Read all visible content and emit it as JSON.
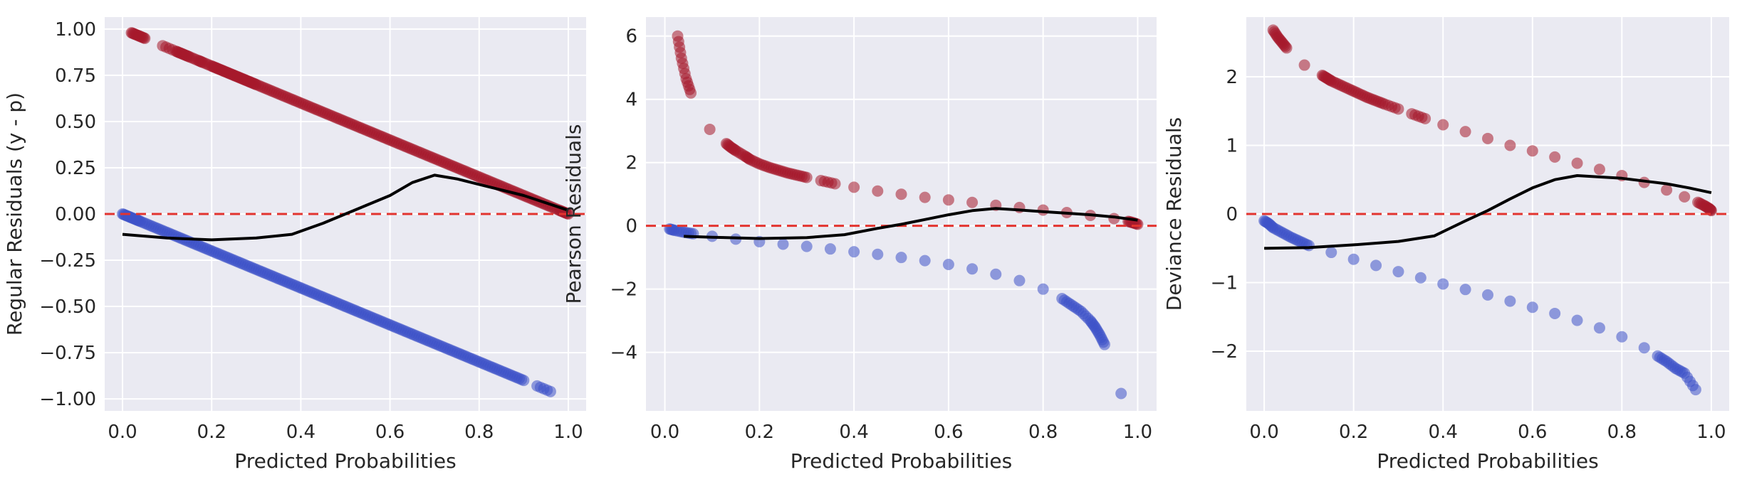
{
  "colors": {
    "panel_background": "#eaeaf2",
    "grid": "#ffffff",
    "positive_points": "#a5192b",
    "negative_points": "#3e52c8",
    "trend_line": "#000000",
    "reference_line": "#e3342f"
  },
  "chart_data": [
    {
      "type": "scatter",
      "title": "",
      "xlabel": "Predicted Probabilities",
      "ylabel": "Regular Residuals (y - p)",
      "xlim": [
        -0.04,
        1.04
      ],
      "ylim": [
        -1.065,
        1.065
      ],
      "xticks": [
        0.0,
        0.2,
        0.4,
        0.6,
        0.8,
        1.0
      ],
      "xtick_labels": [
        "0.0",
        "0.2",
        "0.4",
        "0.6",
        "0.8",
        "1.0"
      ],
      "yticks": [
        -1.0,
        -0.75,
        -0.5,
        -0.25,
        0.0,
        0.25,
        0.5,
        0.75,
        1.0
      ],
      "ytick_labels": [
        "−1.00",
        "−0.75",
        "−0.50",
        "−0.25",
        "0.00",
        "0.25",
        "0.50",
        "0.75",
        "1.00"
      ],
      "grid": true,
      "reference_line_y": 0,
      "series": [
        {
          "kind": "scatter",
          "color": "#a5192b",
          "x": [
            0.02,
            0.03,
            0.04,
            0.05,
            0.09,
            0.12,
            0.13,
            0.14,
            0.15,
            0.17,
            0.18,
            0.2,
            0.21,
            0.22,
            0.23,
            0.24,
            0.25,
            0.26,
            0.27,
            0.28,
            0.29,
            0.3,
            0.32,
            0.34,
            0.36,
            0.38,
            0.4,
            0.42,
            0.44,
            0.46,
            0.48,
            0.5,
            0.52,
            0.54,
            0.56,
            0.58,
            0.6,
            0.62,
            0.64,
            0.66,
            0.68,
            0.7,
            0.72,
            0.74,
            0.76,
            0.78,
            0.8,
            0.82,
            0.84,
            0.86,
            0.88,
            0.9,
            0.92,
            0.94,
            0.96,
            0.98,
            0.99,
            1.0
          ],
          "y": [
            0.98,
            0.97,
            0.96,
            0.95,
            0.91,
            0.88,
            0.87,
            0.86,
            0.85,
            0.83,
            0.82,
            0.8,
            0.79,
            0.78,
            0.77,
            0.76,
            0.75,
            0.74,
            0.73,
            0.72,
            0.71,
            0.7,
            0.68,
            0.66,
            0.64,
            0.62,
            0.6,
            0.58,
            0.56,
            0.54,
            0.52,
            0.5,
            0.48,
            0.46,
            0.44,
            0.42,
            0.4,
            0.38,
            0.36,
            0.34,
            0.32,
            0.3,
            0.28,
            0.26,
            0.24,
            0.22,
            0.2,
            0.18,
            0.16,
            0.14,
            0.12,
            0.1,
            0.08,
            0.06,
            0.04,
            0.02,
            0.01,
            0.0
          ]
        },
        {
          "kind": "scatter",
          "color": "#3e52c8",
          "x": [
            0.0,
            0.01,
            0.02,
            0.03,
            0.04,
            0.06,
            0.08,
            0.1,
            0.12,
            0.14,
            0.16,
            0.18,
            0.2,
            0.22,
            0.24,
            0.26,
            0.28,
            0.3,
            0.32,
            0.34,
            0.36,
            0.38,
            0.4,
            0.42,
            0.44,
            0.46,
            0.48,
            0.5,
            0.52,
            0.54,
            0.56,
            0.58,
            0.6,
            0.62,
            0.64,
            0.66,
            0.68,
            0.7,
            0.72,
            0.74,
            0.76,
            0.78,
            0.8,
            0.82,
            0.84,
            0.86,
            0.88,
            0.9,
            0.93,
            0.96
          ],
          "y": [
            0.0,
            -0.01,
            -0.02,
            -0.03,
            -0.04,
            -0.06,
            -0.08,
            -0.1,
            -0.12,
            -0.14,
            -0.16,
            -0.18,
            -0.2,
            -0.22,
            -0.24,
            -0.26,
            -0.28,
            -0.3,
            -0.32,
            -0.34,
            -0.36,
            -0.38,
            -0.4,
            -0.42,
            -0.44,
            -0.46,
            -0.48,
            -0.5,
            -0.52,
            -0.54,
            -0.56,
            -0.58,
            -0.6,
            -0.62,
            -0.64,
            -0.66,
            -0.68,
            -0.7,
            -0.72,
            -0.74,
            -0.76,
            -0.78,
            -0.8,
            -0.82,
            -0.84,
            -0.86,
            -0.88,
            -0.9,
            -0.93,
            -0.96
          ]
        },
        {
          "kind": "line",
          "color": "#000000",
          "x": [
            0.0,
            0.1,
            0.2,
            0.3,
            0.38,
            0.45,
            0.5,
            0.55,
            0.6,
            0.65,
            0.7,
            0.75,
            0.8,
            0.85,
            0.9,
            0.95,
            1.0
          ],
          "y": [
            -0.11,
            -0.13,
            -0.14,
            -0.13,
            -0.11,
            -0.05,
            0.0,
            0.05,
            0.1,
            0.17,
            0.21,
            0.19,
            0.16,
            0.13,
            0.1,
            0.06,
            0.02
          ]
        }
      ]
    },
    {
      "type": "scatter",
      "title": "",
      "xlabel": "Predicted Probabilities",
      "ylabel": "Pearson Residuals",
      "xlim": [
        -0.04,
        1.04
      ],
      "ylim": [
        -5.85,
        6.6
      ],
      "xticks": [
        0.0,
        0.2,
        0.4,
        0.6,
        0.8,
        1.0
      ],
      "xtick_labels": [
        "0.0",
        "0.2",
        "0.4",
        "0.6",
        "0.8",
        "1.0"
      ],
      "yticks": [
        -4,
        -2,
        0,
        2,
        4,
        6
      ],
      "ytick_labels": [
        "−4",
        "−2",
        "0",
        "2",
        "4",
        "6"
      ],
      "grid": true,
      "reference_line_y": 0,
      "series": [
        {
          "kind": "scatter",
          "color": "#a5192b",
          "x": [
            0.027,
            0.035,
            0.045,
            0.055,
            0.095,
            0.13,
            0.14,
            0.15,
            0.17,
            0.18,
            0.2,
            0.22,
            0.24,
            0.26,
            0.28,
            0.3,
            0.33,
            0.36,
            0.4,
            0.45,
            0.5,
            0.55,
            0.6,
            0.65,
            0.7,
            0.75,
            0.8,
            0.85,
            0.9,
            0.95,
            0.98,
            0.99,
            1.0
          ],
          "y": [
            6.0,
            5.3,
            4.65,
            4.2,
            3.05,
            2.6,
            2.48,
            2.38,
            2.2,
            2.1,
            1.96,
            1.85,
            1.76,
            1.67,
            1.6,
            1.53,
            1.43,
            1.33,
            1.22,
            1.1,
            1.0,
            0.9,
            0.82,
            0.74,
            0.65,
            0.58,
            0.5,
            0.42,
            0.33,
            0.23,
            0.14,
            0.1,
            0.05
          ]
        },
        {
          "kind": "scatter",
          "color": "#3e52c8",
          "x": [
            0.01,
            0.02,
            0.04,
            0.06,
            0.1,
            0.15,
            0.2,
            0.25,
            0.3,
            0.35,
            0.4,
            0.45,
            0.5,
            0.55,
            0.6,
            0.65,
            0.7,
            0.75,
            0.8,
            0.84,
            0.86,
            0.88,
            0.9,
            0.91,
            0.92,
            0.93,
            0.965
          ],
          "y": [
            -0.1,
            -0.14,
            -0.2,
            -0.25,
            -0.33,
            -0.42,
            -0.5,
            -0.58,
            -0.65,
            -0.73,
            -0.82,
            -0.9,
            -1.0,
            -1.1,
            -1.22,
            -1.36,
            -1.53,
            -1.73,
            -2.0,
            -2.3,
            -2.5,
            -2.7,
            -3.0,
            -3.2,
            -3.45,
            -3.75,
            -5.3
          ]
        },
        {
          "kind": "line",
          "color": "#000000",
          "x": [
            0.04,
            0.1,
            0.2,
            0.3,
            0.38,
            0.45,
            0.5,
            0.55,
            0.6,
            0.65,
            0.7,
            0.75,
            0.8,
            0.85,
            0.9,
            0.95,
            1.0
          ],
          "y": [
            -0.33,
            -0.36,
            -0.4,
            -0.37,
            -0.28,
            -0.08,
            0.05,
            0.2,
            0.35,
            0.48,
            0.55,
            0.5,
            0.45,
            0.4,
            0.35,
            0.28,
            0.18
          ]
        }
      ]
    },
    {
      "type": "scatter",
      "title": "",
      "xlabel": "Predicted Probabilities",
      "ylabel": "Deviance Residuals",
      "xlim": [
        -0.04,
        1.04
      ],
      "ylim": [
        -2.87,
        2.87
      ],
      "xticks": [
        0.0,
        0.2,
        0.4,
        0.6,
        0.8,
        1.0
      ],
      "xtick_labels": [
        "0.0",
        "0.2",
        "0.4",
        "0.6",
        "0.8",
        "1.0"
      ],
      "yticks": [
        -2,
        -1,
        0,
        1,
        2
      ],
      "ytick_labels": [
        "−2",
        "−1",
        "0",
        "1",
        "2"
      ],
      "grid": true,
      "reference_line_y": 0,
      "series": [
        {
          "kind": "scatter",
          "color": "#a5192b",
          "x": [
            0.02,
            0.03,
            0.04,
            0.05,
            0.09,
            0.13,
            0.14,
            0.15,
            0.17,
            0.19,
            0.21,
            0.23,
            0.25,
            0.27,
            0.3,
            0.33,
            0.36,
            0.4,
            0.45,
            0.5,
            0.55,
            0.6,
            0.65,
            0.7,
            0.75,
            0.8,
            0.85,
            0.9,
            0.94,
            0.97,
            0.985,
            0.995,
            1.0
          ],
          "y": [
            2.68,
            2.58,
            2.5,
            2.42,
            2.17,
            2.02,
            1.98,
            1.94,
            1.88,
            1.82,
            1.76,
            1.7,
            1.65,
            1.6,
            1.53,
            1.46,
            1.39,
            1.3,
            1.2,
            1.1,
            1.0,
            0.92,
            0.83,
            0.74,
            0.65,
            0.56,
            0.46,
            0.35,
            0.25,
            0.17,
            0.12,
            0.08,
            0.05
          ]
        },
        {
          "kind": "scatter",
          "color": "#3e52c8",
          "x": [
            0.0,
            0.01,
            0.02,
            0.04,
            0.06,
            0.08,
            0.1,
            0.15,
            0.2,
            0.25,
            0.3,
            0.35,
            0.4,
            0.45,
            0.5,
            0.55,
            0.6,
            0.65,
            0.7,
            0.75,
            0.8,
            0.85,
            0.88,
            0.9,
            0.92,
            0.94,
            0.965
          ],
          "y": [
            -0.1,
            -0.14,
            -0.2,
            -0.27,
            -0.34,
            -0.4,
            -0.46,
            -0.56,
            -0.66,
            -0.75,
            -0.84,
            -0.93,
            -1.02,
            -1.1,
            -1.18,
            -1.27,
            -1.36,
            -1.45,
            -1.55,
            -1.66,
            -1.79,
            -1.95,
            -2.07,
            -2.15,
            -2.25,
            -2.32,
            -2.56
          ]
        },
        {
          "kind": "line",
          "color": "#000000",
          "x": [
            0.0,
            0.1,
            0.2,
            0.3,
            0.38,
            0.45,
            0.5,
            0.55,
            0.6,
            0.65,
            0.7,
            0.75,
            0.8,
            0.85,
            0.9,
            0.95,
            1.0
          ],
          "y": [
            -0.5,
            -0.49,
            -0.45,
            -0.4,
            -0.32,
            -0.1,
            0.05,
            0.22,
            0.38,
            0.5,
            0.56,
            0.54,
            0.52,
            0.48,
            0.44,
            0.38,
            0.31
          ]
        }
      ]
    }
  ]
}
